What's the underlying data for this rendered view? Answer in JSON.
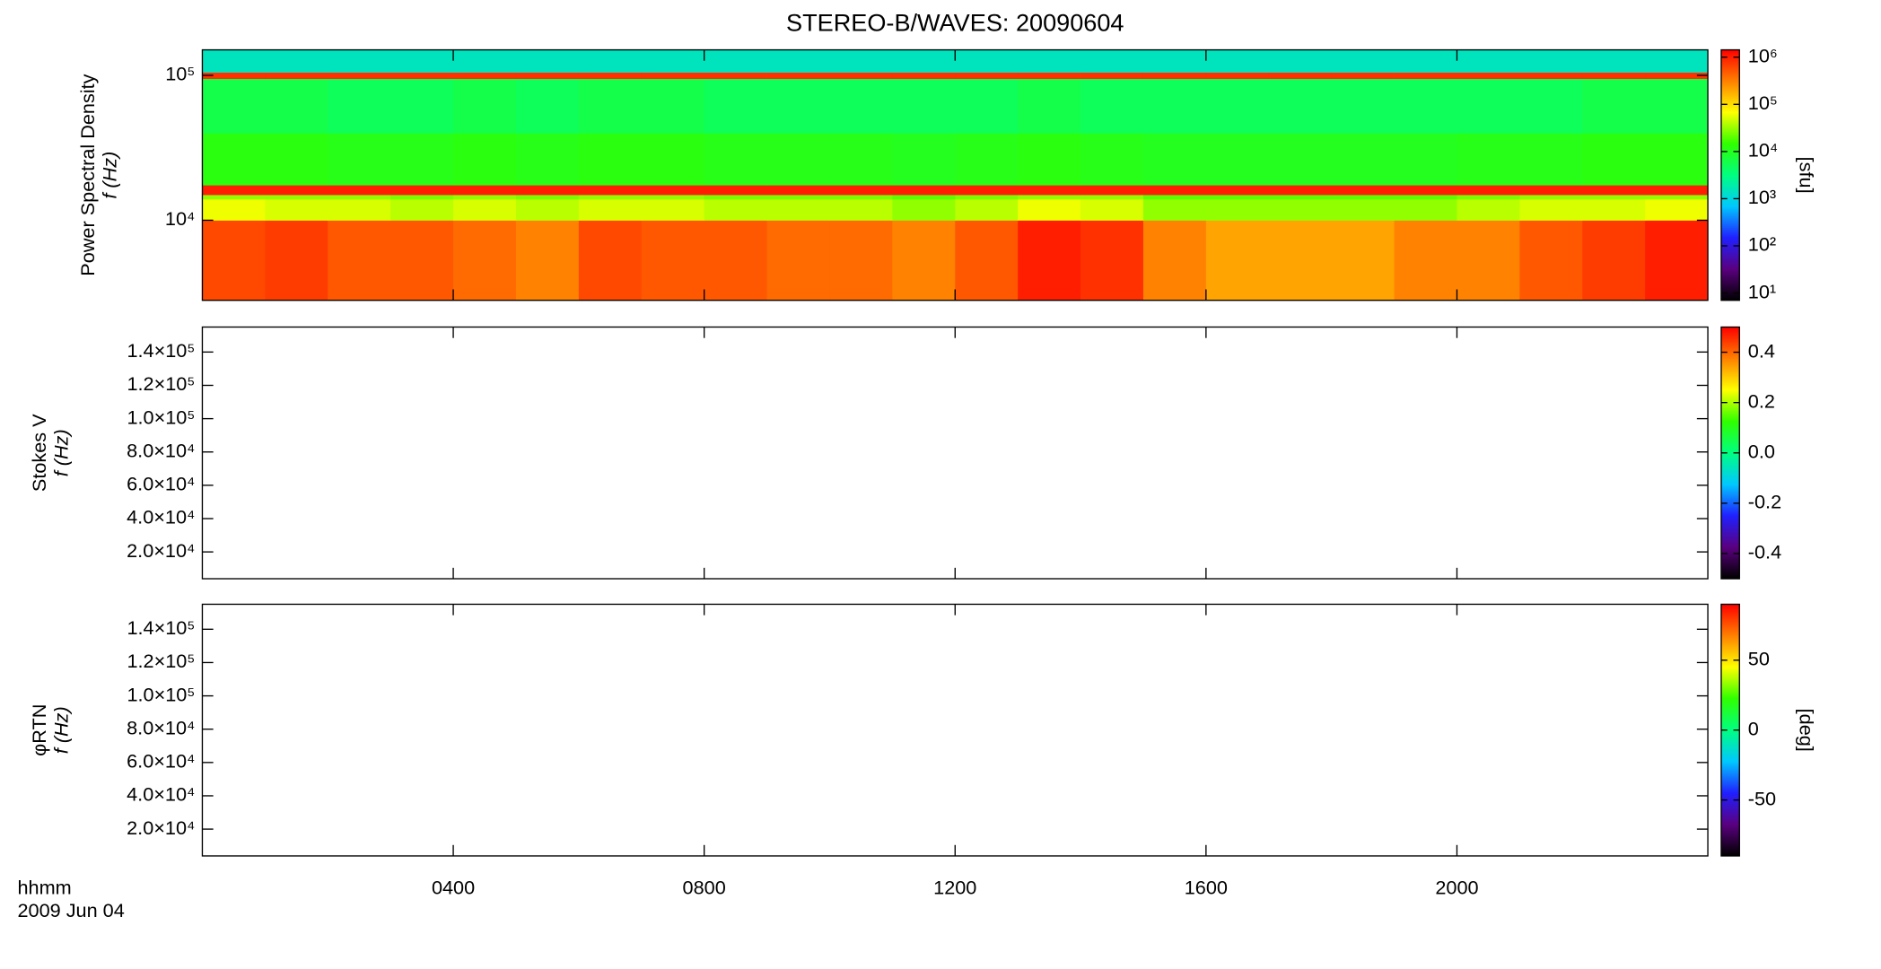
{
  "chart_data": [
    {
      "type": "heatmap",
      "title": "STEREO-B/WAVES: 20090604",
      "ylabel": [
        "Power Spectral Density",
        "f (Hz)"
      ],
      "zlabel": "[sfu]",
      "xlim": [
        0,
        24
      ],
      "ylim": [
        2800,
        150000
      ],
      "ylog": true,
      "yticks": [
        {
          "value": 10000,
          "label": "10⁴"
        },
        {
          "value": 100000,
          "label": "10⁵"
        }
      ],
      "x_edges": [
        0,
        1,
        2,
        3,
        4,
        5,
        6,
        7,
        8,
        9,
        10,
        11,
        12,
        13,
        14,
        15,
        16,
        17,
        18,
        19,
        20,
        21,
        22,
        23,
        24
      ],
      "y_edges": [
        2800,
        10000,
        14000,
        15000,
        17500,
        40000,
        95000,
        105000,
        150000
      ],
      "z": [
        [
          600000,
          700000,
          500000,
          500000,
          400000,
          300000,
          600000,
          500000,
          500000,
          400000,
          400000,
          300000,
          500000,
          1000000,
          800000,
          300000,
          200000,
          200000,
          200000,
          300000,
          300000,
          500000,
          700000,
          1000000
        ],
        [
          60000,
          50000,
          50000,
          40000,
          50000,
          40000,
          50000,
          50000,
          40000,
          40000,
          40000,
          30000,
          40000,
          60000,
          50000,
          30000,
          30000,
          30000,
          30000,
          30000,
          40000,
          50000,
          50000,
          60000
        ],
        [
          30000,
          30000,
          30000,
          25000,
          30000,
          25000,
          30000,
          30000,
          25000,
          25000,
          25000,
          20000,
          25000,
          30000,
          30000,
          20000,
          20000,
          20000,
          20000,
          20000,
          25000,
          30000,
          30000,
          30000
        ],
        [
          1000000,
          1000000,
          1000000,
          1000000,
          1000000,
          1000000,
          1000000,
          1000000,
          1000000,
          1000000,
          1000000,
          1000000,
          1000000,
          1000000,
          1000000,
          1000000,
          1000000,
          1000000,
          1000000,
          1000000,
          1000000,
          1000000,
          1000000,
          1000000
        ],
        [
          12000,
          12000,
          11000,
          11000,
          12000,
          11000,
          12000,
          12000,
          11000,
          11000,
          11000,
          10000,
          11000,
          12000,
          11000,
          10000,
          10000,
          10000,
          10000,
          10000,
          11000,
          11000,
          12000,
          12000
        ],
        [
          6000,
          6000,
          5000,
          5000,
          6000,
          5000,
          6000,
          6000,
          5000,
          5000,
          5000,
          5000,
          5000,
          6000,
          5000,
          5000,
          5000,
          5000,
          5000,
          5000,
          5000,
          5000,
          6000,
          6000
        ],
        [
          800000,
          800000,
          800000,
          800000,
          800000,
          800000,
          800000,
          800000,
          800000,
          800000,
          800000,
          800000,
          800000,
          800000,
          800000,
          800000,
          800000,
          800000,
          800000,
          800000,
          800000,
          800000,
          800000,
          800000
        ],
        [
          1500,
          1500,
          1500,
          1500,
          1500,
          1500,
          1500,
          1500,
          1500,
          1500,
          1500,
          1500,
          1500,
          1500,
          1500,
          1500,
          1500,
          1500,
          1500,
          1500,
          1500,
          1500,
          1500,
          1500
        ]
      ],
      "zlim": [
        7,
        1430000
      ],
      "zlog": true,
      "zticks": [
        {
          "value": 10,
          "label": "10¹"
        },
        {
          "value": 100,
          "label": "10²"
        },
        {
          "value": 1000,
          "label": "10³"
        },
        {
          "value": 10000,
          "label": "10⁴"
        },
        {
          "value": 100000,
          "label": "10⁵"
        },
        {
          "value": 1000000,
          "label": "10⁶"
        }
      ],
      "colormap": [
        "#000000",
        "#5a0080",
        "#2020ff",
        "#00c8ff",
        "#00ff80",
        "#30ff00",
        "#ffff00",
        "#ff8000",
        "#ff0000"
      ]
    },
    {
      "type": "heatmap",
      "ylabel": [
        "Stokes V",
        "f (Hz)"
      ],
      "xlim": [
        0,
        24
      ],
      "ylim": [
        3900,
        155000
      ],
      "yticks": [
        {
          "value": 20000,
          "label": "2.0×10⁴"
        },
        {
          "value": 40000,
          "label": "4.0×10⁴"
        },
        {
          "value": 60000,
          "label": "6.0×10⁴"
        },
        {
          "value": 80000,
          "label": "8.0×10⁴"
        },
        {
          "value": 100000,
          "label": "1.0×10⁵"
        },
        {
          "value": 120000,
          "label": "1.2×10⁵"
        },
        {
          "value": 140000,
          "label": "1.4×10⁵"
        }
      ],
      "zlim": [
        -0.5,
        0.5
      ],
      "zticks": [
        -0.4,
        -0.2,
        {
          "value": 0,
          "label": "0.0"
        },
        0.2,
        0.4
      ],
      "colormap": [
        "#000000",
        "#5a0080",
        "#2020ff",
        "#00c8ff",
        "#00ff80",
        "#30ff00",
        "#ffff00",
        "#ff8000",
        "#ff0000"
      ]
    },
    {
      "type": "heatmap",
      "ylabel": [
        "φRTN",
        "f (Hz)"
      ],
      "zlabel": "[deg]",
      "xlim": [
        0,
        24
      ],
      "ylim": [
        3900,
        155000
      ],
      "yticks": [
        {
          "value": 20000,
          "label": "2.0×10⁴"
        },
        {
          "value": 40000,
          "label": "4.0×10⁴"
        },
        {
          "value": 60000,
          "label": "6.0×10⁴"
        },
        {
          "value": 80000,
          "label": "8.0×10⁴"
        },
        {
          "value": 100000,
          "label": "1.0×10⁵"
        },
        {
          "value": 120000,
          "label": "1.2×10⁵"
        },
        {
          "value": 140000,
          "label": "1.4×10⁵"
        }
      ],
      "zlim": [
        -90,
        90
      ],
      "zticks": [
        -50,
        0,
        50
      ],
      "colormap": [
        "#000000",
        "#5a0080",
        "#2020ff",
        "#00c8ff",
        "#00ff80",
        "#30ff00",
        "#ffff00",
        "#ff8000",
        "#ff0000"
      ],
      "xticks": [
        {
          "value": 4,
          "label": "0400"
        },
        {
          "value": 8,
          "label": "0800"
        },
        {
          "value": 12,
          "label": "1200"
        },
        {
          "value": 16,
          "label": "1600"
        },
        {
          "value": 20,
          "label": "2000"
        }
      ],
      "xlabel": "hhmm",
      "date": "2009 Jun 04"
    }
  ]
}
